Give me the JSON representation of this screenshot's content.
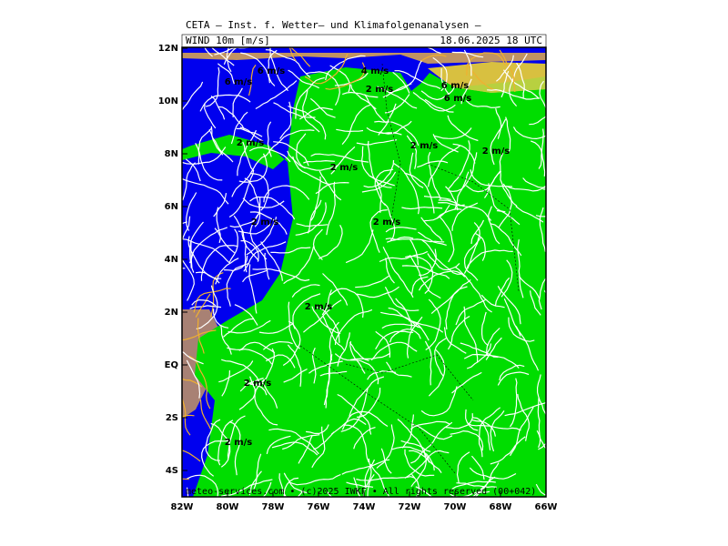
{
  "header": {
    "title": "CETA — Inst. f. Wetter— und Klimafolgenanalysen —",
    "field": "WIND 10m [m/s]",
    "valid": "18.06.2025 18 UTC"
  },
  "map": {
    "lat_labels": [
      "12N",
      "10N",
      "8N",
      "6N",
      "4N",
      "2N",
      "EQ",
      "2S",
      "4S"
    ],
    "lon_labels": [
      "82W",
      "80W",
      "78W",
      "76W",
      "74W",
      "72W",
      "70W",
      "68W",
      "66W"
    ],
    "contour_labels": [
      "6 m/s",
      "6 m/s",
      "4 m/s",
      "2 m/s",
      "6 m/s",
      "6 m/s",
      "2 m/s",
      "2 m/s",
      "2 m/s",
      "2 m/s",
      "2 m/s",
      "2 m/s",
      "2 m/s",
      "2 m/s",
      "2 m/s"
    ],
    "footer": "meteo-services.com • (c)2025 IWKF • All rights reserved (00+042)"
  }
}
